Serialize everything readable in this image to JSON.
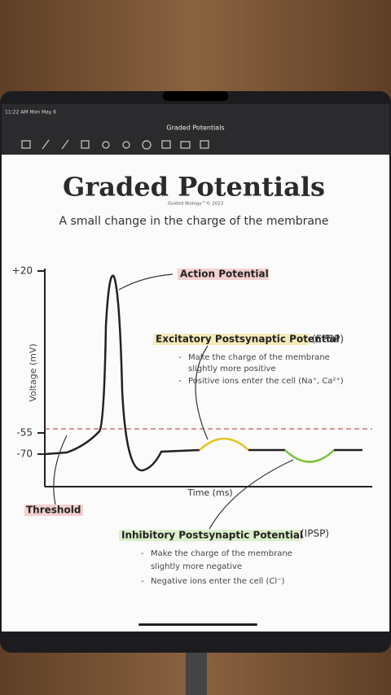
{
  "status_bar": {
    "time": "11:22 AM  Mon May 6"
  },
  "toolbar": {
    "document_title": "Graded Potentials"
  },
  "page": {
    "title": "Graded Potentials",
    "credit": "Guided Biology™© 2023",
    "subtitle": "A small change in the charge of the membrane"
  },
  "diagram": {
    "y_axis_label": "Voltage (mV)",
    "x_axis_label": "Time (ms)",
    "y_labels": [
      "+20",
      "-55",
      "-70"
    ],
    "annotations": {
      "action_potential": "Action Potential",
      "threshold": "Threshold",
      "epsp": {
        "title": "Excitatory Postsynaptic Potential",
        "abbr": "(EPSP)",
        "bullets": [
          "Make the charge of the membrane",
          "slightly more positive",
          "Positive ions enter the cell (Na⁺, Ca²⁺)"
        ]
      },
      "ipsp": {
        "title": "Inhibitory Postsynaptic Potential",
        "abbr": "(IPSP)",
        "bullets": [
          "Make the charge of the membrane",
          "slightly more negative",
          "Negative ions enter the cell (Cl⁻)"
        ]
      }
    }
  }
}
